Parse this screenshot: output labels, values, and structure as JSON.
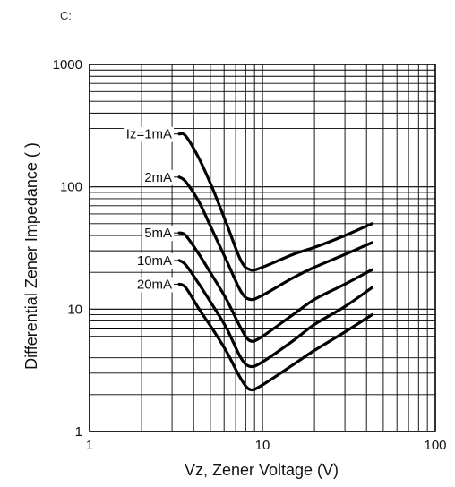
{
  "corner_mark": "C:",
  "chart_data": {
    "type": "line",
    "title": "",
    "xlabel": "Vz, Zener Voltage (V)",
    "ylabel": "Differential Zener Impedance ( )",
    "xscale": "log",
    "yscale": "log",
    "xlim": [
      1,
      100
    ],
    "ylim": [
      1,
      1000
    ],
    "grid": true,
    "x_ticks": [
      "1",
      "10",
      "100"
    ],
    "y_ticks": [
      "1",
      "10",
      "100",
      "1000"
    ],
    "series": [
      {
        "name": "Iz=1mA",
        "x": [
          3.3,
          3.6,
          4.3,
          5.1,
          6.2,
          7.5,
          8.5,
          10,
          15,
          20,
          30,
          43
        ],
        "y": [
          270,
          260,
          170,
          100,
          50,
          25,
          21,
          22,
          28,
          32,
          40,
          50
        ]
      },
      {
        "name": "2mA",
        "x": [
          3.3,
          3.6,
          4.3,
          5.1,
          6.2,
          7.5,
          8.5,
          10,
          15,
          20,
          30,
          43
        ],
        "y": [
          120,
          110,
          75,
          45,
          25,
          14,
          12,
          13,
          18,
          22,
          28,
          35
        ]
      },
      {
        "name": "5mA",
        "x": [
          3.3,
          3.6,
          4.3,
          5.1,
          6.2,
          7.5,
          8.5,
          10,
          15,
          20,
          30,
          43
        ],
        "y": [
          42,
          40,
          28,
          19,
          12,
          7,
          5.5,
          6,
          9,
          12,
          16,
          21
        ]
      },
      {
        "name": "10mA",
        "x": [
          3.3,
          3.6,
          4.3,
          5.1,
          6.2,
          7.5,
          8.5,
          10,
          15,
          20,
          30,
          43
        ],
        "y": [
          25,
          23,
          16,
          11,
          7,
          4,
          3.4,
          3.7,
          5.5,
          7.5,
          10.5,
          15
        ]
      },
      {
        "name": "20mA",
        "x": [
          3.3,
          3.6,
          4.3,
          5.1,
          6.2,
          7.5,
          8.5,
          10,
          15,
          20,
          30,
          43
        ],
        "y": [
          16,
          15,
          10,
          7,
          4.5,
          2.7,
          2.2,
          2.4,
          3.5,
          4.6,
          6.5,
          9
        ]
      }
    ]
  }
}
